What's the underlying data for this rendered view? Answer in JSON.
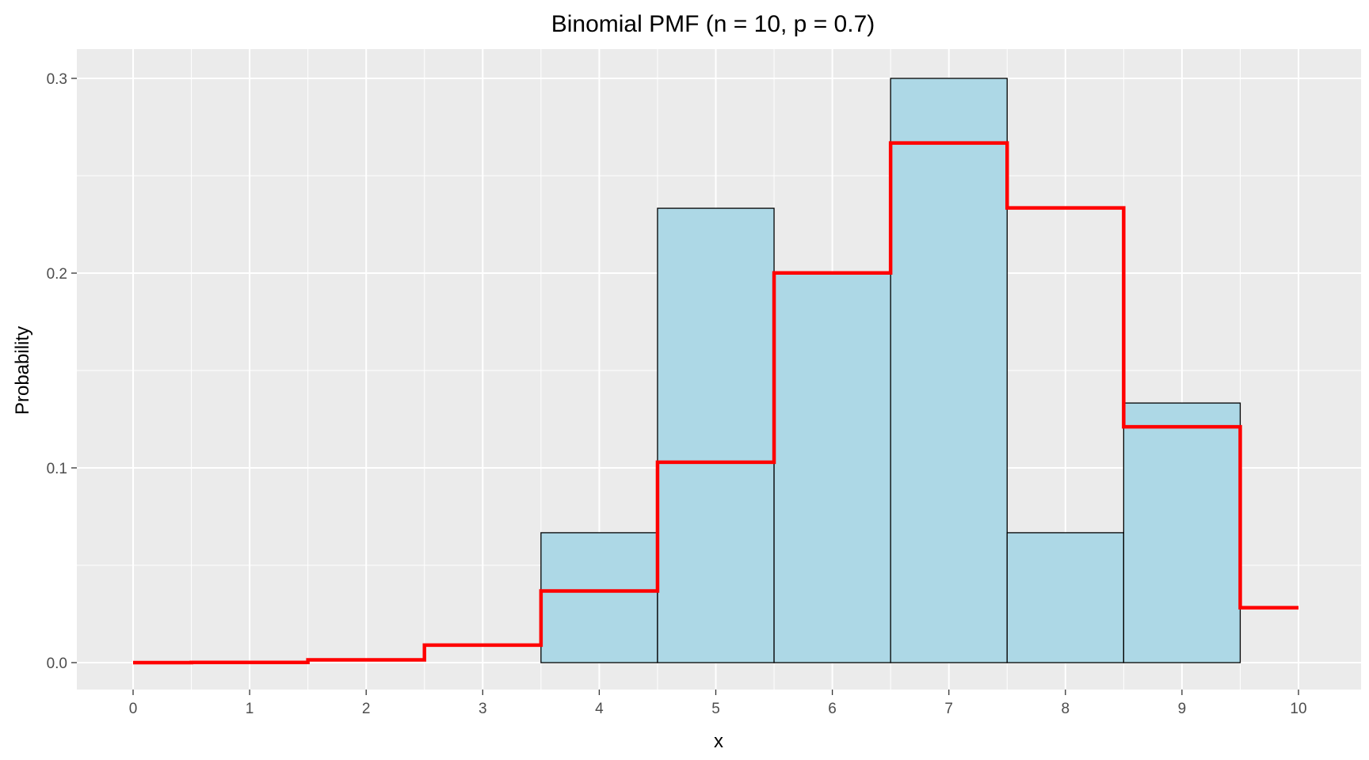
{
  "chart_data": {
    "type": "bar",
    "title": "Binomial PMF (n = 10, p = 0.7)",
    "xlabel": "x",
    "ylabel": "Probability",
    "xlim": [
      0,
      10
    ],
    "ylim": [
      0,
      0.3
    ],
    "x_ticks": [
      0,
      1,
      2,
      3,
      4,
      5,
      6,
      7,
      8,
      9,
      10
    ],
    "y_ticks": [
      "0.0",
      "0.1",
      "0.2",
      "0.3"
    ],
    "grid": true,
    "histogram": {
      "fill": "#add8e6",
      "outline": "#000000",
      "bins": [
        {
          "x0": 3.5,
          "x1": 4.5,
          "value": 0.0667
        },
        {
          "x0": 4.5,
          "x1": 5.5,
          "value": 0.2333
        },
        {
          "x0": 5.5,
          "x1": 6.5,
          "value": 0.2
        },
        {
          "x0": 6.5,
          "x1": 7.5,
          "value": 0.3
        },
        {
          "x0": 7.5,
          "x1": 8.5,
          "value": 0.0667
        },
        {
          "x0": 8.5,
          "x1": 9.5,
          "value": 0.1333
        }
      ]
    },
    "pmf_step": {
      "color": "#ff0000",
      "points": [
        {
          "x0": 0,
          "x1": 0.5,
          "value": 0.0
        },
        {
          "x0": 0.5,
          "x1": 1.5,
          "value": 0.0001
        },
        {
          "x0": 1.5,
          "x1": 2.5,
          "value": 0.0014
        },
        {
          "x0": 2.5,
          "x1": 3.5,
          "value": 0.009
        },
        {
          "x0": 3.5,
          "x1": 4.5,
          "value": 0.0368
        },
        {
          "x0": 4.5,
          "x1": 5.5,
          "value": 0.1029
        },
        {
          "x0": 5.5,
          "x1": 6.5,
          "value": 0.2001
        },
        {
          "x0": 6.5,
          "x1": 7.5,
          "value": 0.2668
        },
        {
          "x0": 7.5,
          "x1": 8.5,
          "value": 0.2335
        },
        {
          "x0": 8.5,
          "x1": 9.5,
          "value": 0.1211
        },
        {
          "x0": 9.5,
          "x1": 10,
          "value": 0.0282
        }
      ]
    },
    "panel_background": "#ebebeb",
    "grid_color": "#ffffff"
  }
}
